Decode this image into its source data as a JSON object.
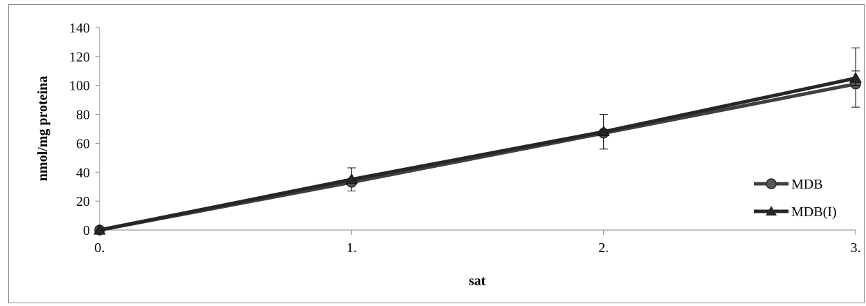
{
  "chart_data": {
    "type": "line",
    "xlabel": "sat",
    "ylabel": "nmol/mg proteina",
    "x": [
      0,
      1,
      2,
      3
    ],
    "x_tick_labels": [
      "0.",
      "1.",
      "2.",
      "3."
    ],
    "y_ticks": [
      0,
      20,
      40,
      60,
      80,
      100,
      120,
      140
    ],
    "ylim": [
      0,
      140
    ],
    "xlim": [
      0,
      3
    ],
    "grid": false,
    "legend_position": "right",
    "series": [
      {
        "name": "MDB",
        "marker": "circle",
        "color": "#404040",
        "values": [
          0,
          33,
          67,
          101
        ],
        "error_plus": [
          0,
          10,
          13,
          25
        ],
        "error_minus": [
          0,
          6,
          11,
          16
        ]
      },
      {
        "name": "MDB(I)",
        "marker": "triangle",
        "color": "#262626",
        "values": [
          0,
          35,
          68,
          105
        ],
        "error_plus": [
          0,
          0,
          0,
          5
        ],
        "error_minus": [
          0,
          0,
          0,
          5
        ]
      }
    ]
  }
}
